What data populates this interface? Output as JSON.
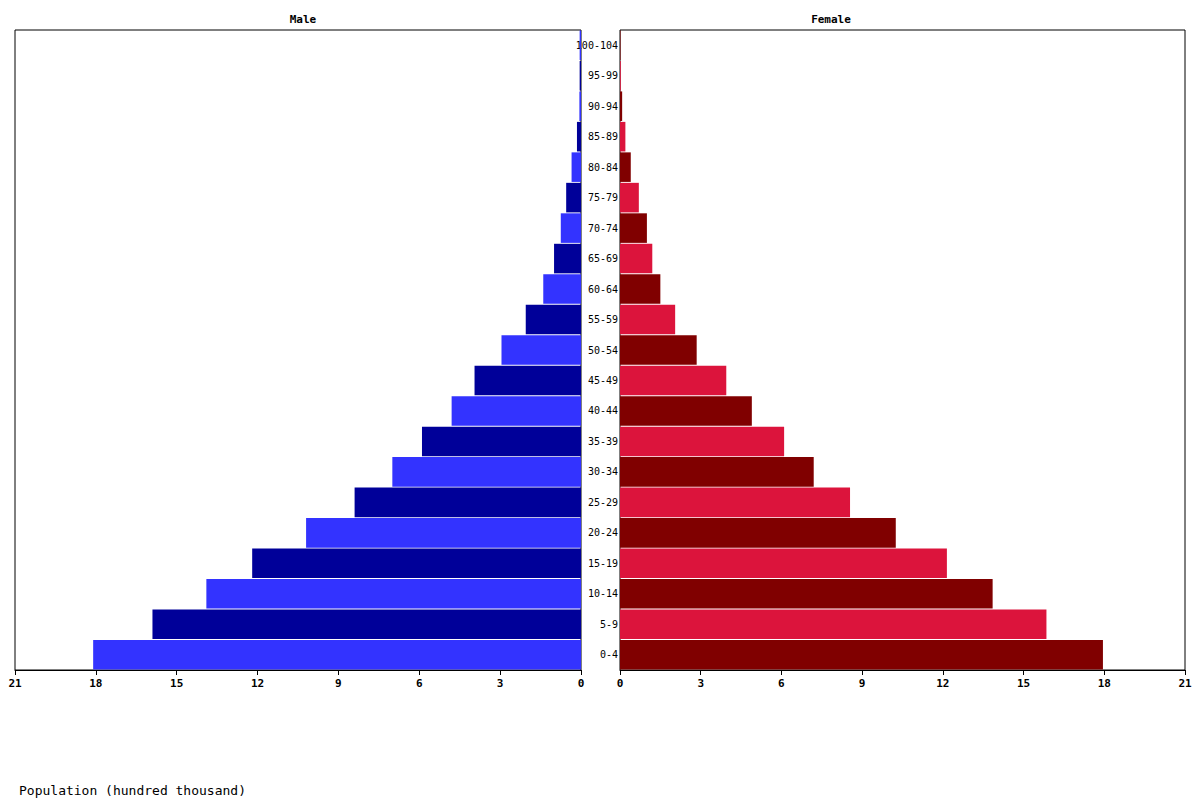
{
  "chart_data": {
    "type": "bar",
    "orientation": "horizontal",
    "grid": false,
    "xlabel": "Population (hundred thousand)",
    "categories": [
      "0-4",
      "5-9",
      "10-14",
      "15-19",
      "20-24",
      "25-29",
      "30-34",
      "35-39",
      "40-44",
      "45-49",
      "50-54",
      "55-59",
      "60-64",
      "65-69",
      "70-74",
      "75-79",
      "80-84",
      "85-89",
      "90-94",
      "95-99",
      "100-104"
    ],
    "xlim": [
      0,
      21
    ],
    "xticks": [
      0,
      3,
      6,
      9,
      12,
      15,
      18,
      21
    ],
    "series": [
      {
        "name": "Male",
        "colors": [
          "#3333ff",
          "#000099",
          "#3333ff",
          "#000099",
          "#3333ff",
          "#000099",
          "#3333ff",
          "#000099",
          "#3333ff",
          "#000099",
          "#3333ff",
          "#000099",
          "#3333ff",
          "#000099",
          "#3333ff",
          "#000099",
          "#3333ff",
          "#000099",
          "#3333ff",
          "#000099",
          "#3333ff"
        ],
        "values": [
          18.1,
          15.9,
          13.9,
          12.2,
          10.2,
          8.4,
          7.0,
          5.9,
          4.8,
          3.95,
          2.95,
          2.05,
          1.4,
          1.0,
          0.75,
          0.55,
          0.35,
          0.15,
          0.06,
          0.05,
          0.05
        ]
      },
      {
        "name": "Female",
        "colors": [
          "#800000",
          "#dc143c",
          "#800000",
          "#dc143c",
          "#800000",
          "#dc143c",
          "#800000",
          "#dc143c",
          "#800000",
          "#dc143c",
          "#800000",
          "#dc143c",
          "#800000",
          "#dc143c",
          "#800000",
          "#dc143c",
          "#800000",
          "#dc143c",
          "#800000",
          "#dc143c",
          "#800000"
        ],
        "values": [
          17.95,
          15.85,
          13.85,
          12.15,
          10.25,
          8.55,
          7.2,
          6.1,
          4.9,
          3.95,
          2.85,
          2.05,
          1.5,
          1.2,
          1.0,
          0.7,
          0.4,
          0.2,
          0.08,
          0.03,
          0.02
        ]
      }
    ]
  }
}
